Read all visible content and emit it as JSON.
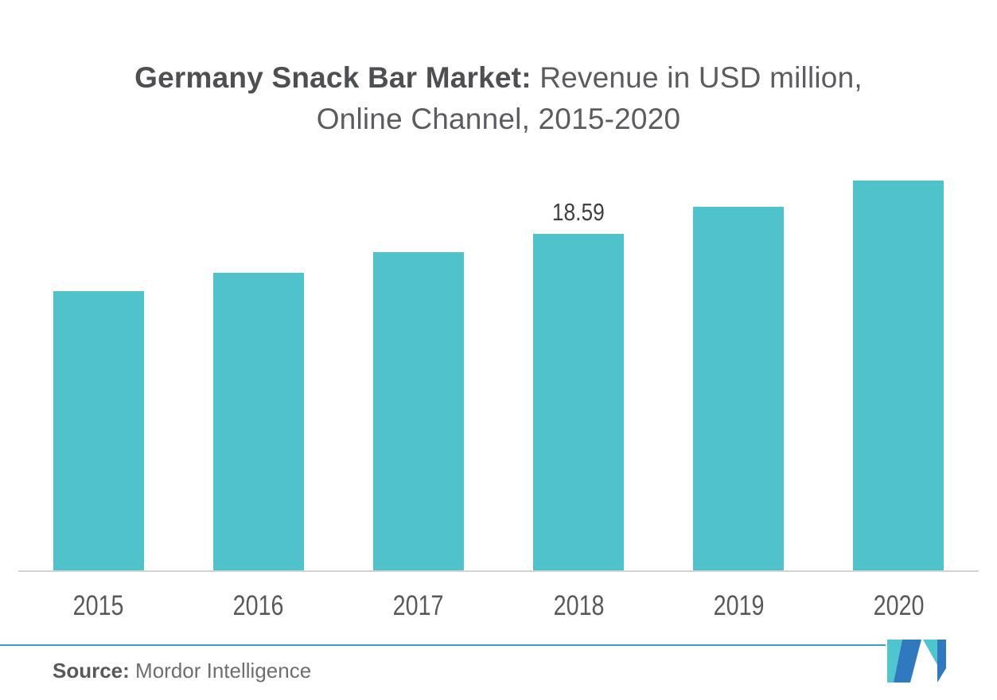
{
  "title": {
    "bold": "Germany Snack Bar Market:",
    "regular": "Revenue in USD million,",
    "line2": "Online Channel, 2015-2020"
  },
  "chart_data": {
    "type": "bar",
    "title": "Germany Snack Bar Market: Revenue in USD million, Online Channel, 2015-2020",
    "categories": [
      "2015",
      "2016",
      "2017",
      "2018",
      "2019",
      "2020"
    ],
    "values": [
      15.43,
      16.44,
      17.58,
      18.59,
      20.09,
      21.54
    ],
    "data_labels": [
      "",
      "",
      "",
      "18.59",
      "",
      ""
    ],
    "xlabel": "",
    "ylabel": "",
    "ylim": [
      0,
      23
    ],
    "grid": false,
    "legend": false,
    "bar_color": "#4fc2cb",
    "axis_line_color": "#d5d2d2",
    "label_color": "#58595b"
  },
  "footer": {
    "source_label": "Source:",
    "source_value": "Mordor Intelligence",
    "rule_color": "#3fa0c4",
    "logo_name": "mordor-intelligence-logo",
    "logo_teal": "#4ec5cf",
    "logo_blue": "#3079be"
  }
}
